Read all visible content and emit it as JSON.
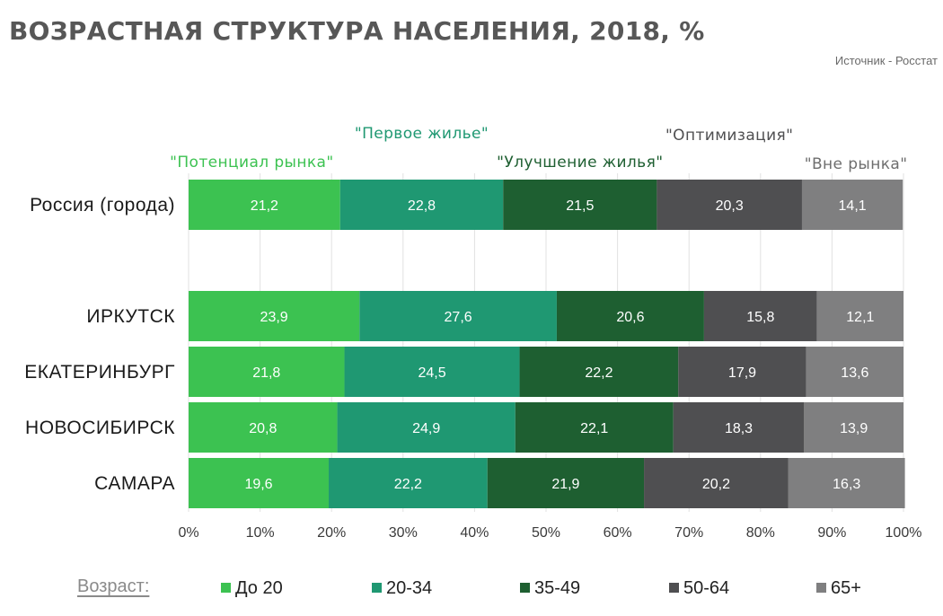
{
  "title": "ВОЗРАСТНАЯ СТРУКТУРА НАСЕЛЕНИЯ, 2018, %",
  "source": "Источник - Росстат",
  "legend": {
    "title": "Возраст:",
    "items": [
      {
        "label": "До 20",
        "color": "#3cc251"
      },
      {
        "label": "20-34",
        "color": "#1f9872"
      },
      {
        "label": "35-49",
        "color": "#1e5f31"
      },
      {
        "label": "50-64",
        "color": "#4f4f51"
      },
      {
        "label": "65+",
        "color": "#7f7f80"
      }
    ]
  },
  "chart_data": {
    "type": "bar",
    "orientation": "horizontal",
    "stacked": true,
    "categories": [
      "Россия (города)",
      "ИРКУТСК",
      "ЕКАТЕРИНБУРГ",
      "НОВОСИБИРСК",
      "САМАРА"
    ],
    "series": [
      {
        "name": "До 20",
        "color": "#3cc251",
        "values": [
          21.2,
          23.9,
          21.8,
          20.8,
          19.6
        ]
      },
      {
        "name": "20-34",
        "color": "#1f9872",
        "values": [
          22.8,
          27.6,
          24.5,
          24.9,
          22.2
        ]
      },
      {
        "name": "35-49",
        "color": "#1e5f31",
        "values": [
          21.5,
          20.6,
          22.2,
          22.1,
          21.9
        ]
      },
      {
        "name": "50-64",
        "color": "#4f4f51",
        "values": [
          20.3,
          15.8,
          17.9,
          18.3,
          20.2
        ]
      },
      {
        "name": "65+",
        "color": "#7f7f80",
        "values": [
          14.1,
          12.1,
          13.6,
          13.9,
          16.3
        ]
      }
    ],
    "value_labels": [
      [
        "21,2",
        "23,9",
        "21,8",
        "20,8",
        "19,6"
      ],
      [
        "22,8",
        "27,6",
        "24,5",
        "24,9",
        "22,2"
      ],
      [
        "21,5",
        "20,6",
        "22,2",
        "22,1",
        "21,9"
      ],
      [
        "20,3",
        "15,8",
        "17,9",
        "18,3",
        "20,2"
      ],
      [
        "14,1",
        "12,1",
        "13,6",
        "13,9",
        "16,3"
      ]
    ],
    "xlim": [
      0,
      100
    ],
    "x_ticks": [
      "0%",
      "10%",
      "20%",
      "30%",
      "40%",
      "50%",
      "60%",
      "70%",
      "80%",
      "90%",
      "100%"
    ],
    "grid": true,
    "segment_annotations": [
      {
        "text": "\"Потенциал рынка\"",
        "color": "#3cc251"
      },
      {
        "text": "\"Первое жилье\"",
        "color": "#1f9872"
      },
      {
        "text": "\"Улучшение жилья\"",
        "color": "#1e5f31"
      },
      {
        "text": "\"Оптимизация\"",
        "color": "#4f4f51"
      },
      {
        "text": "\"Вне рынка\"",
        "color": "#6e6e6e"
      }
    ]
  }
}
